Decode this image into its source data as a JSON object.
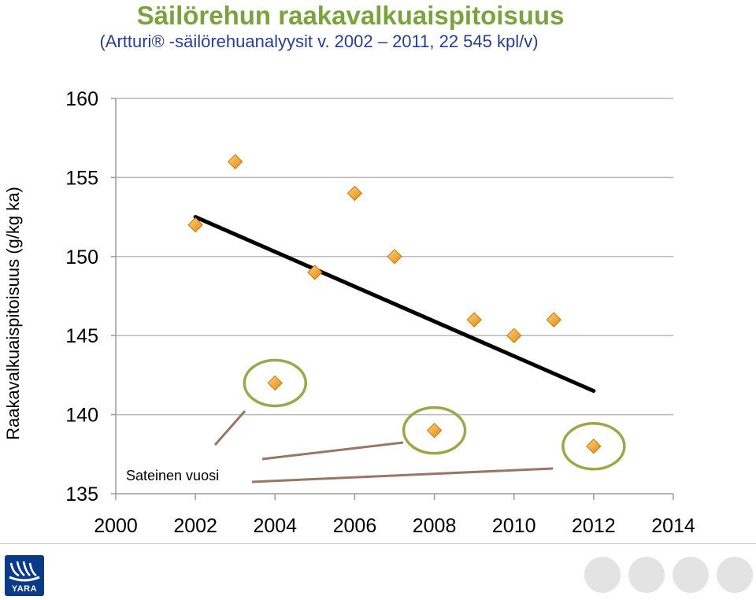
{
  "header": {
    "title": "Säilörehun raakavalkuaispitoisuus",
    "subtitle": "(Artturi® -säilörehuanalyysit v. 2002 – 2011, 22 545 kpl/v)"
  },
  "chart_data": {
    "type": "scatter",
    "title": "Säilörehun raakavalkuaispitoisuus",
    "subtitle": "(Artturi® -säilörehuanalyysit v. 2002 – 2011, 22 545 kpl/v)",
    "xlabel": "",
    "ylabel": "Raakavalkuaispitoisuus  (g/kg ka)",
    "xlim": [
      2000,
      2014
    ],
    "ylim": [
      135,
      160
    ],
    "x_ticks": [
      2000,
      2002,
      2004,
      2006,
      2008,
      2010,
      2012,
      2014
    ],
    "y_ticks": [
      135,
      140,
      145,
      150,
      155,
      160
    ],
    "grid": "horizontal",
    "series": [
      {
        "points": [
          {
            "x": 2002,
            "y": 152
          },
          {
            "x": 2003,
            "y": 156
          },
          {
            "x": 2004,
            "y": 142
          },
          {
            "x": 2005,
            "y": 149
          },
          {
            "x": 2006,
            "y": 154
          },
          {
            "x": 2007,
            "y": 150
          },
          {
            "x": 2008,
            "y": 139
          },
          {
            "x": 2009,
            "y": 146
          },
          {
            "x": 2010,
            "y": 145
          },
          {
            "x": 2011,
            "y": 146
          },
          {
            "x": 2012,
            "y": 138
          }
        ],
        "color": "#f0a030"
      }
    ],
    "trendline": {
      "x": [
        2002,
        2012
      ],
      "y": [
        152.5,
        141.5
      ],
      "color": "#000000"
    },
    "highlighted_points": [
      2004,
      2008,
      2012
    ],
    "highlight_color": "#9aa84a",
    "annotation": {
      "text": "Sateinen vuosi",
      "points_to": [
        2004,
        2008,
        2012
      ],
      "line_color": "#9b7563"
    }
  },
  "footer": {
    "logo_text": "YARA",
    "brand_color": "#0a3a8a"
  }
}
